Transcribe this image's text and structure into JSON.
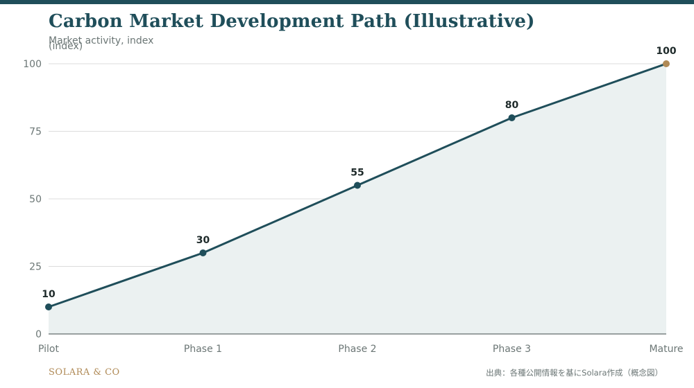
{
  "chart_data": {
    "type": "line",
    "title": "Carbon Market Development Path (Illustrative)",
    "ylabel": "Market activity, index (index)",
    "xlabel": "",
    "categories": [
      "Pilot",
      "Phase 1",
      "Phase 2",
      "Phase 3",
      "Mature"
    ],
    "values": [
      10,
      30,
      55,
      80,
      100
    ],
    "data_labels": [
      "10",
      "30",
      "55",
      "80",
      "100"
    ],
    "ylim": [
      0,
      100
    ],
    "yticks": [
      0,
      25,
      50,
      75,
      100
    ],
    "ytick_labels": [
      "0",
      "25",
      "50",
      "75",
      "100"
    ],
    "grid": true,
    "area_fill": true,
    "colors": {
      "line": "#1f4e5a",
      "area": "#ebf1f1",
      "last_point": "#b08a56",
      "grid": "#dcdcdc",
      "axis": "#7a8383"
    }
  },
  "footer": {
    "brand": "SOLARA & CO",
    "source": "出典：各種公開情報を基にSolara作成（概念図）"
  }
}
